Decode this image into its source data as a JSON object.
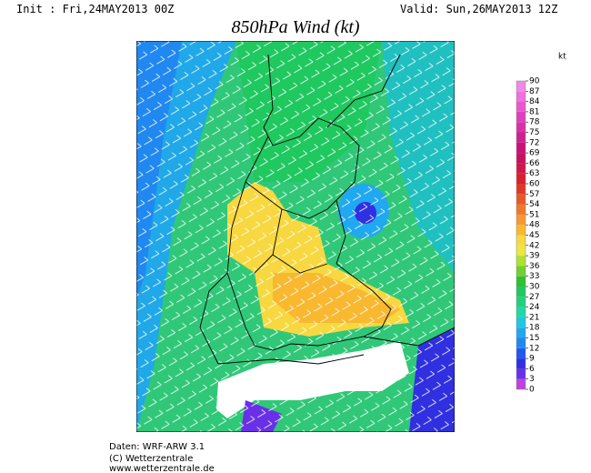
{
  "header": {
    "init": "Init : Fri,24MAY2013 00Z",
    "valid": "Valid: Sun,26MAY2013 12Z",
    "title": "850hPa Wind (kt)"
  },
  "colorbar": {
    "unit": "kt",
    "ticks": [
      0,
      3,
      6,
      9,
      12,
      15,
      18,
      21,
      24,
      27,
      30,
      33,
      36,
      39,
      42,
      45,
      48,
      51,
      54,
      57,
      60,
      63,
      66,
      69,
      72,
      75,
      78,
      81,
      84,
      87,
      90
    ],
    "colors": [
      "#c040e0",
      "#6a30e8",
      "#3030e0",
      "#2058f0",
      "#2088f0",
      "#20a8f0",
      "#20c8e0",
      "#20d8a8",
      "#20d080",
      "#20c860",
      "#30c030",
      "#70d030",
      "#b0e030",
      "#e8e840",
      "#f8d840",
      "#f8b830",
      "#f89830",
      "#f07828",
      "#e85828",
      "#e03828",
      "#d82030",
      "#d01848",
      "#c81060",
      "#c81078",
      "#d02090",
      "#d830a8",
      "#e040c0",
      "#e858d0",
      "#f070e0",
      "#f088e8"
    ]
  },
  "footer": {
    "lines": [
      "Daten: WRF-ARW 3.1",
      "(C) Wetterzentrale",
      "www.wetterzentrale.de"
    ]
  }
}
